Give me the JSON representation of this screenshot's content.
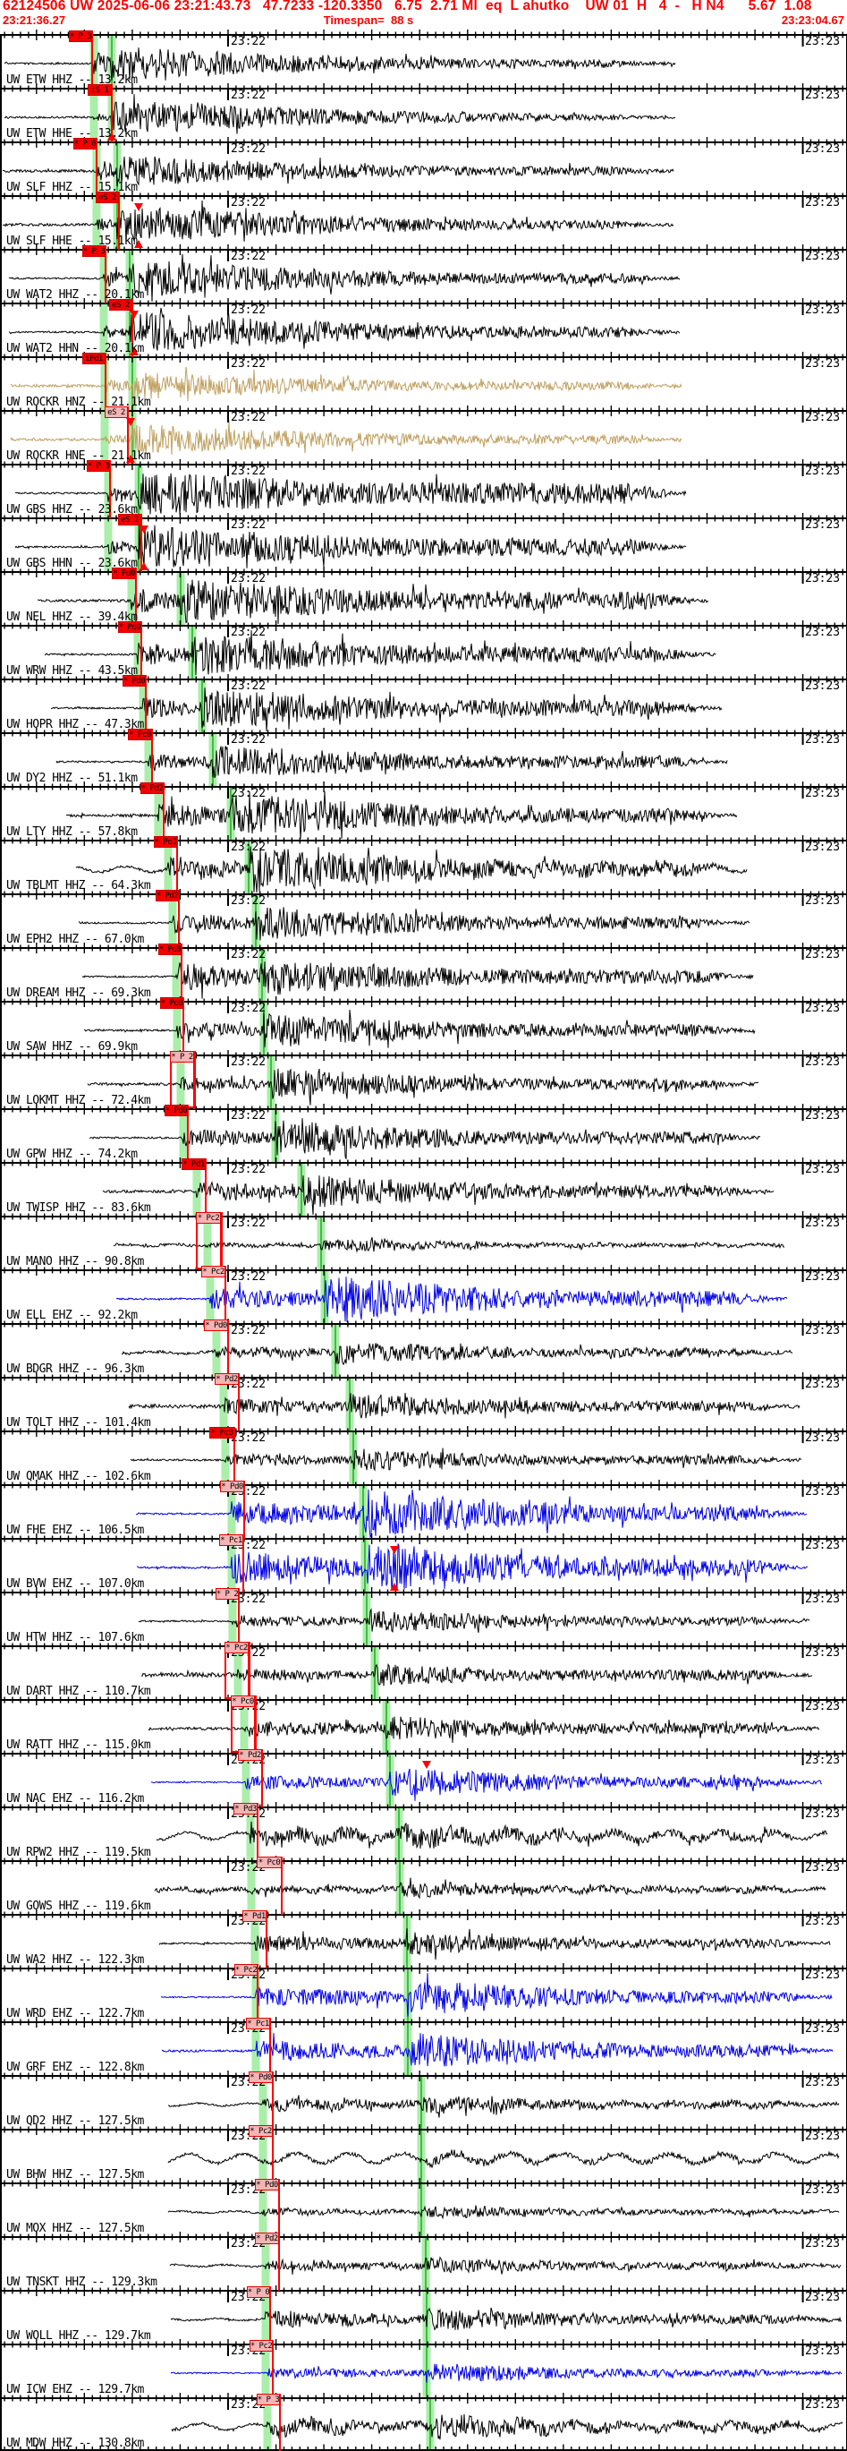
{
  "header": {
    "line1": "62124506 UW 2025-06-06 23:21:43.73   47.7233 -120.3350   6.75  2.71 Ml  eq  L ahutko    UW 01  H   4  -   H N4      5.67  1.08",
    "start_time": "23:21:36.27",
    "timespan_label": "Timespan=  88 s",
    "end_time": "23:23:04.67"
  },
  "minutes": [
    "23:22",
    "23:23"
  ],
  "colors": {
    "accent_red": "#ff0000",
    "flag_red_bg": "#f40000",
    "flag_pink_bg": "#f4b4b4",
    "band_green": "#aaeeaa",
    "band_green_line": "#44bb44",
    "trace_black": "#000000",
    "trace_blue": "#0000e8",
    "trace_tan": "#c0a060"
  },
  "traces": [
    {
      "label": "UW ETW HHZ -- 13.2km",
      "flag": "* P 3",
      "style": "r",
      "color": "k",
      "fx": 77,
      "px": 103,
      "bp": 105,
      "bs": 125,
      "ds": 5,
      "pre": 1,
      "ap": 14,
      "as": 20,
      "fl": 4,
      "wob": 0,
      "box": false,
      "tri": []
    },
    {
      "label": "UW ETW HHE -- 13.2km",
      "flag": "iS 1",
      "style": "r",
      "color": "k",
      "fx": 98,
      "px": 125,
      "bp": 105,
      "bs": 125,
      "ds": 5,
      "pre": 1,
      "ap": 5,
      "as": 20,
      "fl": 3,
      "wob": 0,
      "box": false,
      "tri": [
        [
          "b",
          125
        ]
      ]
    },
    {
      "label": "UW SLF HHZ -- 15.1km",
      "flag": "* P 0",
      "style": "r",
      "color": "k",
      "fx": 82,
      "px": 108,
      "bp": 108,
      "bs": 131,
      "ds": 3,
      "pre": 1.5,
      "ap": 12,
      "as": 18,
      "fl": 5,
      "wob": 0,
      "box": false,
      "tri": []
    },
    {
      "label": "UW SLF HHE -- 15.1km",
      "flag": "eS 2",
      "style": "r",
      "color": "k",
      "fx": 107,
      "px": 133,
      "bp": 108,
      "bs": 131,
      "ds": 3,
      "pre": 1.5,
      "ap": 8,
      "as": 22,
      "fl": 5,
      "wob": 0,
      "box": false,
      "tri": [
        [
          "t",
          155
        ],
        [
          "b",
          155
        ]
      ]
    },
    {
      "label": "UW WAT2 HHZ -- 20.1km",
      "flag": "* P 3",
      "style": "r",
      "color": "k",
      "fx": 92,
      "px": 118,
      "bp": 116,
      "bs": 145,
      "ds": 10,
      "pre": 1,
      "ap": 10,
      "as": 22,
      "fl": 6,
      "wob": 0,
      "box": false,
      "tri": []
    },
    {
      "label": "UW WAT2 HHN -- 20.1km",
      "flag": "eS 2",
      "style": "r",
      "color": "k",
      "fx": 122,
      "px": 148,
      "bp": 116,
      "bs": 145,
      "ds": 10,
      "pre": 1,
      "ap": 7,
      "as": 24,
      "fl": 6,
      "wob": 0,
      "box": false,
      "tri": [
        [
          "t",
          150
        ],
        [
          "b",
          150
        ]
      ]
    },
    {
      "label": "UW ROCKR HNZ -- 21.1km",
      "flag": "iPd1",
      "style": "r",
      "color": "t",
      "fx": 92,
      "px": 118,
      "bp": 117,
      "bs": 148,
      "ds": 12,
      "pre": 1.5,
      "ap": 8,
      "as": 16,
      "fl": 5,
      "wob": 0,
      "box": false,
      "tri": []
    },
    {
      "label": "UW ROCKR HNE -- 21.1km",
      "flag": "eS 2",
      "style": "p",
      "color": "t",
      "fx": 117,
      "px": 143,
      "bp": 117,
      "bs": 148,
      "ds": 12,
      "pre": 1.5,
      "ap": 6,
      "as": 18,
      "fl": 5,
      "wob": 0,
      "box": false,
      "tri": [
        [
          "t",
          146
        ],
        [
          "b",
          146
        ]
      ]
    },
    {
      "label": "UW GBS HHZ -- 23.6km",
      "flag": "* P 3",
      "style": "r",
      "color": "k",
      "fx": 97,
      "px": 123,
      "bp": 121,
      "bs": 155,
      "ds": 17,
      "pre": 1,
      "ap": 12,
      "as": 27,
      "fl": 12,
      "wob": 0,
      "box": false,
      "tri": []
    },
    {
      "label": "UW GBS HHN -- 23.6km",
      "flag": "eS 2",
      "style": "r",
      "color": "k",
      "fx": 132,
      "px": 158,
      "bp": 121,
      "bs": 155,
      "ds": 17,
      "pre": 1,
      "ap": 8,
      "as": 26,
      "fl": 10,
      "wob": 0,
      "box": false,
      "tri": [
        [
          "t",
          161
        ],
        [
          "b",
          161
        ]
      ]
    },
    {
      "label": "UW NEL HHZ -- 39.4km",
      "flag": "* Pd0",
      "style": "r",
      "color": "k",
      "fx": 125,
      "px": 152,
      "bp": 147,
      "bs": 202,
      "ds": 42,
      "pre": 1.5,
      "ap": 16,
      "as": 26,
      "fl": 10,
      "wob": 0,
      "box": false,
      "tri": []
    },
    {
      "label": "UW WRW HHZ -- 43.5km",
      "flag": "* Pd0",
      "style": "r",
      "color": "k",
      "fx": 132,
      "px": 158,
      "bp": 154,
      "bs": 215,
      "ds": 50,
      "pre": 1,
      "ap": 14,
      "as": 24,
      "fl": 9,
      "wob": 0,
      "box": false,
      "tri": []
    },
    {
      "label": "UW HOPR HHZ -- 47.3km",
      "flag": "* Pd0",
      "style": "r",
      "color": "k",
      "fx": 137,
      "px": 163,
      "bp": 160,
      "bs": 226,
      "ds": 57,
      "pre": 1,
      "ap": 12,
      "as": 24,
      "fl": 9,
      "wob": 0,
      "box": false,
      "tri": []
    },
    {
      "label": "UW DY2 HHZ -- 51.1km",
      "flag": "* Pc0",
      "style": "r",
      "color": "k",
      "fx": 143,
      "px": 170,
      "bp": 166,
      "bs": 238,
      "ds": 63,
      "pre": 1,
      "ap": 9,
      "as": 20,
      "fl": 7,
      "wob": 0,
      "box": false,
      "tri": []
    },
    {
      "label": "UW LTY HHZ -- 57.8km",
      "flag": "* Pd2",
      "style": "r",
      "color": "k",
      "fx": 157,
      "px": 183,
      "bp": 177,
      "bs": 258,
      "ds": 74,
      "pre": 1.5,
      "ap": 14,
      "as": 26,
      "fl": 8,
      "wob": 0,
      "box": false,
      "tri": []
    },
    {
      "label": "UW TBLMT HHZ -- 64.3km",
      "flag": "* Pd2",
      "style": "r",
      "color": "k",
      "fx": 172,
      "px": 198,
      "bp": 188,
      "bs": 278,
      "ds": 85,
      "pre": 1.5,
      "ap": 12,
      "as": 26,
      "fl": 8,
      "wob": 3,
      "box": false,
      "tri": []
    },
    {
      "label": "UW EPH2 HHZ -- 67.0km",
      "flag": "* Pd2",
      "style": "r",
      "color": "k",
      "fx": 174,
      "px": 200,
      "bp": 193,
      "bs": 286,
      "ds": 88,
      "pre": 1,
      "ap": 12,
      "as": 20,
      "fl": 7,
      "wob": 0,
      "box": false,
      "tri": []
    },
    {
      "label": "UW DREAM HHZ -- 69.3km",
      "flag": "* Pd0",
      "style": "r",
      "color": "k",
      "fx": 177,
      "px": 203,
      "bp": 197,
      "bs": 293,
      "ds": 92,
      "pre": 1,
      "ap": 16,
      "as": 22,
      "fl": 8,
      "wob": 0,
      "box": false,
      "tri": []
    },
    {
      "label": "UW SAW HHZ -- 69.9km",
      "flag": "* Pd0",
      "style": "r",
      "color": "k",
      "fx": 179,
      "px": 205,
      "bp": 198,
      "bs": 295,
      "ds": 94,
      "pre": 1,
      "ap": 10,
      "as": 20,
      "fl": 7,
      "wob": 0,
      "box": false,
      "tri": []
    },
    {
      "label": "UW LOKMT HHZ -- 72.4km",
      "flag": "* P 2",
      "style": "p",
      "color": "k",
      "fx": 190,
      "px": 217,
      "bp": 202,
      "bs": 303,
      "ds": 98,
      "pre": 1.5,
      "ap": 8,
      "as": 18,
      "fl": 6,
      "wob": 0,
      "box": true,
      "tri": []
    },
    {
      "label": "UW GPW HHZ -- 74.2km",
      "flag": "* Pd0",
      "style": "r",
      "color": "k",
      "fx": 184,
      "px": 210,
      "bp": 205,
      "bs": 308,
      "ds": 100,
      "pre": 1,
      "ap": 10,
      "as": 20,
      "fl": 7,
      "wob": 0,
      "box": false,
      "tri": []
    },
    {
      "label": "UW TWISP HHZ -- 83.6km",
      "flag": "* Pd1",
      "style": "r",
      "color": "k",
      "fx": 203,
      "px": 230,
      "bp": 220,
      "bs": 337,
      "ds": 115,
      "pre": 1.5,
      "ap": 12,
      "as": 20,
      "fl": 7,
      "wob": 0,
      "box": false,
      "tri": []
    },
    {
      "label": "UW MANO HHZ -- 90.8km",
      "flag": "* Pc2",
      "style": "p",
      "color": "k",
      "fx": 219,
      "px": 247,
      "bp": 232,
      "bs": 359,
      "ds": 127,
      "pre": 1.5,
      "ap": 2.5,
      "as": 7,
      "fl": 2.5,
      "wob": 1,
      "box": true,
      "tri": []
    },
    {
      "label": "UW ELL EHZ -- 92.2km",
      "flag": "* Pc2",
      "style": "p",
      "color": "b",
      "fx": 225,
      "px": 252,
      "bp": 235,
      "bs": 363,
      "ds": 130,
      "pre": 1,
      "ap": 12,
      "as": 28,
      "fl": 9,
      "wob": 0,
      "box": false,
      "tri": []
    },
    {
      "label": "UW BDGR HHZ -- 96.3km",
      "flag": "* Pd0",
      "style": "p",
      "color": "k",
      "fx": 228,
      "px": 255,
      "bp": 242,
      "bs": 375,
      "ds": 136,
      "pre": 1.5,
      "ap": 7,
      "as": 13,
      "fl": 5,
      "wob": 1,
      "box": false,
      "tri": []
    },
    {
      "label": "UW TOLT HHZ -- 101.4km",
      "flag": "* Pd2",
      "style": "p",
      "color": "k",
      "fx": 240,
      "px": 267,
      "bp": 250,
      "bs": 391,
      "ds": 144,
      "pre": 2,
      "ap": 9,
      "as": 15,
      "fl": 6,
      "wob": 0,
      "box": false,
      "tri": []
    },
    {
      "label": "UW QMAK HHZ -- 102.6km",
      "flag": "* Pc0",
      "style": "r",
      "color": "k",
      "fx": 234,
      "px": 262,
      "bp": 252,
      "bs": 395,
      "ds": 146,
      "pre": 1,
      "ap": 7,
      "as": 13,
      "fl": 5,
      "wob": 0,
      "box": false,
      "tri": []
    },
    {
      "label": "UW FHE EHZ -- 106.5km",
      "flag": "* Pd0",
      "style": "p",
      "color": "b",
      "fx": 246,
      "px": 273,
      "bp": 259,
      "bs": 406,
      "ds": 152,
      "pre": 1,
      "ap": 14,
      "as": 28,
      "fl": 8,
      "wob": 0,
      "box": false,
      "tri": []
    },
    {
      "label": "UW BVW EHZ -- 107.0km",
      "flag": "* Pc1",
      "style": "p",
      "color": "b",
      "fx": 245,
      "px": 272,
      "bp": 259,
      "bs": 408,
      "ds": 153,
      "pre": 1.2,
      "ap": 18,
      "as": 30,
      "fl": 10,
      "wob": 0,
      "box": false,
      "tri": [
        [
          "t",
          441
        ],
        [
          "b",
          441
        ]
      ]
    },
    {
      "label": "UW HTW HHZ -- 107.6km",
      "flag": "* P 2",
      "style": "p",
      "color": "k",
      "fx": 241,
      "px": 267,
      "bp": 260,
      "bs": 410,
      "ds": 155,
      "pre": 1,
      "ap": 7,
      "as": 14,
      "fl": 5,
      "wob": 0,
      "box": false,
      "tri": []
    },
    {
      "label": "UW DART HHZ -- 110.7km",
      "flag": "* Pc2",
      "style": "p",
      "color": "k",
      "fx": 251,
      "px": 278,
      "bp": 266,
      "bs": 419,
      "ds": 158,
      "pre": 2.5,
      "ap": 7,
      "as": 13,
      "fl": 6,
      "wob": 0,
      "box": true,
      "tri": []
    },
    {
      "label": "UW RATT HHZ -- 115.0km",
      "flag": "* Pc0",
      "style": "p",
      "color": "k",
      "fx": 258,
      "px": 285,
      "bp": 273,
      "bs": 432,
      "ds": 166,
      "pre": 1.5,
      "ap": 9,
      "as": 15,
      "fl": 6,
      "wob": 0,
      "box": true,
      "tri": []
    },
    {
      "label": "UW NAC EHZ -- 116.2km",
      "flag": "* Pd2",
      "style": "p",
      "color": "b",
      "fx": 266,
      "px": 293,
      "bp": 275,
      "bs": 436,
      "ds": 169,
      "pre": 0.8,
      "ap": 8,
      "as": 18,
      "fl": 6,
      "wob": 0,
      "box": false,
      "tri": [
        [
          "t",
          477
        ]
      ]
    },
    {
      "label": "UW RPW2 HHZ -- 119.5km",
      "flag": "* Pd3",
      "style": "p",
      "color": "k",
      "fx": 261,
      "px": 288,
      "bp": 280,
      "bs": 446,
      "ds": 175,
      "pre": 1.5,
      "ap": 10,
      "as": 13,
      "fl": 5,
      "wob": 4,
      "box": false,
      "tri": []
    },
    {
      "label": "UW GOWS HHZ -- 119.6km",
      "flag": "* Pc0",
      "style": "p",
      "color": "k",
      "fx": 287,
      "px": 315,
      "bp": 281,
      "bs": 447,
      "ds": 173,
      "pre": 2.5,
      "ap": 5,
      "as": 9,
      "fl": 4,
      "wob": 1.5,
      "box": false,
      "tri": []
    },
    {
      "label": "UW WA2 HHZ -- 122.3km",
      "flag": "* Pd1",
      "style": "p",
      "color": "k",
      "fx": 271,
      "px": 298,
      "bp": 285,
      "bs": 455,
      "ds": 178,
      "pre": 1,
      "ap": 9,
      "as": 13,
      "fl": 5,
      "wob": 0,
      "box": false,
      "tri": []
    },
    {
      "label": "UW WRD EHZ -- 122.7km",
      "flag": "* Pc2",
      "style": "p",
      "color": "b",
      "fx": 262,
      "px": 288,
      "bp": 286,
      "bs": 456,
      "ds": 180,
      "pre": 0.8,
      "ap": 11,
      "as": 22,
      "fl": 7,
      "wob": 0,
      "box": false,
      "tri": []
    },
    {
      "label": "UW GRF EHZ -- 122.8km",
      "flag": "* Pc1",
      "style": "p",
      "color": "b",
      "fx": 275,
      "px": 302,
      "bp": 286,
      "bs": 456,
      "ds": 181,
      "pre": 1.2,
      "ap": 12,
      "as": 22,
      "fl": 7,
      "wob": 0,
      "box": false,
      "tri": []
    },
    {
      "label": "UW QD2 HHZ -- 127.5km",
      "flag": "* Pd0",
      "style": "p",
      "color": "k",
      "fx": 278,
      "px": 305,
      "bp": 294,
      "bs": 471,
      "ds": 188,
      "pre": 1,
      "ap": 7,
      "as": 10,
      "fl": 4,
      "wob": 1.5,
      "box": false,
      "tri": []
    },
    {
      "label": "UW BHW HHZ -- 127.5km",
      "flag": "* Pc2",
      "style": "p",
      "color": "k",
      "fx": 278,
      "px": 305,
      "bp": 294,
      "bs": 471,
      "ds": 188,
      "pre": 1.5,
      "ap": 3,
      "as": 6,
      "fl": 3,
      "wob": 5,
      "box": false,
      "tri": []
    },
    {
      "label": "UW MOX HHZ -- 127.5km",
      "flag": "* Pd0",
      "style": "p",
      "color": "k",
      "fx": 285,
      "px": 312,
      "bp": 294,
      "bs": 471,
      "ds": 188,
      "pre": 1,
      "ap": 4,
      "as": 7,
      "fl": 3,
      "wob": 1,
      "box": false,
      "tri": []
    },
    {
      "label": "UW TNSKT HHZ -- 129.3km",
      "flag": "* Pd2",
      "style": "p",
      "color": "k",
      "fx": 285,
      "px": 312,
      "bp": 297,
      "bs": 476,
      "ds": 190,
      "pre": 1,
      "ap": 6,
      "as": 9,
      "fl": 4,
      "wob": 1,
      "box": false,
      "tri": []
    },
    {
      "label": "UW WOLL HHZ -- 129.7km",
      "flag": "* P 0",
      "style": "p",
      "color": "k",
      "fx": 276,
      "px": 302,
      "bp": 297,
      "bs": 477,
      "ds": 191,
      "pre": 1,
      "ap": 9,
      "as": 13,
      "fl": 5,
      "wob": 1,
      "box": false,
      "tri": []
    },
    {
      "label": "UW ICW EHZ -- 129.7km",
      "flag": "* Pc2",
      "style": "p",
      "color": "b",
      "fx": 279,
      "px": 305,
      "bp": 297,
      "bs": 477,
      "ds": 191,
      "pre": 0.8,
      "ap": 6,
      "as": 12,
      "fl": 4,
      "wob": 0,
      "box": false,
      "tri": []
    },
    {
      "label": "UW MDW HHZ -- 130.8km",
      "flag": "* P 3",
      "style": "p",
      "color": "k",
      "fx": 287,
      "px": 313,
      "bp": 299,
      "bs": 481,
      "ds": 192,
      "pre": 1.5,
      "ap": 9,
      "as": 13,
      "fl": 5,
      "wob": 3.5,
      "box": false,
      "tri": []
    }
  ]
}
